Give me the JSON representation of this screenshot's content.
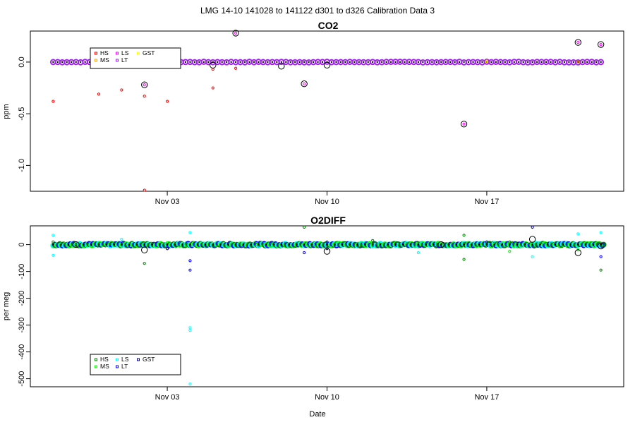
{
  "figure": {
    "title": "LMG   14-10     141028 to 141122     d301 to d326   Calibration Data 3",
    "xlabel": "Date"
  },
  "chart_data": [
    {
      "type": "scatter",
      "title": "CO2",
      "xlabel": "",
      "ylabel": "ppm",
      "xlim": [
        "2014-10-28",
        "2014-11-23"
      ],
      "ylim": [
        -1.25,
        0.3
      ],
      "x_ticks": [
        "Nov 03",
        "Nov 10",
        "Nov 17"
      ],
      "x_tick_dates": [
        "2014-11-03",
        "2014-11-10",
        "2014-11-17"
      ],
      "y_ticks": [
        0.0,
        -0.5,
        -1.0
      ],
      "y_tick_labels": [
        "0.0",
        "-0.5",
        "-1.0"
      ],
      "grid": false,
      "legend": {
        "placement": "top-left",
        "ncol": 3,
        "entries": [
          {
            "name": "HS",
            "color": "#ff0000"
          },
          {
            "name": "LS",
            "color": "#ff00ff"
          },
          {
            "name": "GST",
            "color": "#ffff00"
          },
          {
            "name": "MS",
            "color": "#ffa500"
          },
          {
            "name": "LT",
            "color": "#a020f0"
          }
        ]
      },
      "series": [
        {
          "name": "HS",
          "color": "#ff0000",
          "points": [
            [
              "2014-10-29",
              -0.38
            ],
            [
              "2014-10-31",
              -0.31
            ],
            [
              "2014-11-01",
              -0.27
            ],
            [
              "2014-11-02",
              -0.33
            ],
            [
              "2014-11-03",
              -0.38
            ],
            [
              "2014-11-05",
              -0.25
            ],
            [
              "2014-11-05",
              -0.07
            ],
            [
              "2014-11-06",
              -0.06
            ],
            [
              "2014-11-02",
              -1.24
            ]
          ]
        },
        {
          "name": "LS",
          "color": "#ff00ff",
          "points": [
            [
              "2014-11-02",
              -0.22
            ],
            [
              "2014-11-06",
              0.28
            ],
            [
              "2014-11-09",
              -0.21
            ],
            [
              "2014-11-16",
              -0.6
            ],
            [
              "2014-11-21",
              0.19
            ],
            [
              "2014-11-22",
              0.17
            ]
          ]
        },
        {
          "name": "MS",
          "color": "#ffa500",
          "points": [
            [
              "2014-11-17",
              0.01
            ],
            [
              "2014-11-21",
              0.0
            ]
          ]
        },
        {
          "name": "GST",
          "color": "#ffff00",
          "points": [
            [
              "2014-11-17",
              0.0
            ]
          ]
        },
        {
          "name": "LT",
          "color": "#a020f0",
          "dense_band": {
            "from": "2014-10-29",
            "to": "2014-11-22",
            "per_day": 5,
            "value": 0.0
          }
        }
      ],
      "outliers_circled": [
        [
          "2014-11-02",
          -0.22
        ],
        [
          "2014-11-06",
          0.28
        ],
        [
          "2014-11-09",
          -0.21
        ],
        [
          "2014-11-16",
          -0.6
        ],
        [
          "2014-11-21",
          0.19
        ],
        [
          "2014-11-22",
          0.17
        ],
        [
          "2014-11-05",
          -0.03
        ],
        [
          "2014-11-08",
          -0.04
        ],
        [
          "2014-11-10",
          -0.03
        ]
      ]
    },
    {
      "type": "scatter",
      "title": "O2DIFF",
      "xlabel": "Date",
      "ylabel": "per meg",
      "xlim": [
        "2014-10-28",
        "2014-11-23"
      ],
      "ylim": [
        -530,
        70
      ],
      "x_ticks": [
        "Nov 03",
        "Nov 10",
        "Nov 17"
      ],
      "x_tick_dates": [
        "2014-11-03",
        "2014-11-10",
        "2014-11-17"
      ],
      "y_ticks": [
        0,
        -100,
        -200,
        -300,
        -400,
        -500
      ],
      "y_tick_labels": [
        "0",
        "-100",
        "-200",
        "-300",
        "-400",
        "-500"
      ],
      "grid": false,
      "legend": {
        "placement": "bottom-left",
        "ncol": 3,
        "entries": [
          {
            "name": "HS",
            "color": "#008000"
          },
          {
            "name": "LS",
            "color": "#00ffff"
          },
          {
            "name": "GST",
            "color": "#00008b"
          },
          {
            "name": "MS",
            "color": "#00ff00"
          },
          {
            "name": "LT",
            "color": "#0000ff"
          }
        ]
      },
      "series": [
        {
          "name": "HS",
          "color": "#008000",
          "points": [
            [
              "2014-10-29",
              10
            ],
            [
              "2014-11-02",
              -70
            ],
            [
              "2014-11-09",
              65
            ],
            [
              "2014-11-16",
              35
            ],
            [
              "2014-11-16",
              -55
            ],
            [
              "2014-11-22",
              -95
            ],
            [
              "2014-11-12",
              15
            ],
            [
              "2014-11-18",
              10
            ]
          ]
        },
        {
          "name": "LS",
          "color": "#00ffff",
          "points": [
            [
              "2014-10-29",
              35
            ],
            [
              "2014-10-29",
              -40
            ],
            [
              "2014-11-04",
              45
            ],
            [
              "2014-11-04",
              -310
            ],
            [
              "2014-11-04",
              -320
            ],
            [
              "2014-11-04",
              -520
            ],
            [
              "2014-11-19",
              -45
            ],
            [
              "2014-11-21",
              40
            ],
            [
              "2014-11-22",
              45
            ],
            [
              "2014-11-14",
              -30
            ],
            [
              "2014-11-01",
              20
            ]
          ]
        },
        {
          "name": "MS",
          "color": "#00ff00",
          "points": [
            [
              "2014-10-30",
              5
            ],
            [
              "2014-11-18",
              -25
            ],
            [
              "2014-11-21",
              -20
            ]
          ]
        },
        {
          "name": "LT",
          "color": "#0000ff",
          "points": [
            [
              "2014-11-04",
              -60
            ],
            [
              "2014-11-04",
              -95
            ],
            [
              "2014-11-19",
              65
            ],
            [
              "2014-11-22",
              -45
            ],
            [
              "2014-11-09",
              -30
            ],
            [
              "2014-11-10",
              10
            ]
          ]
        },
        {
          "name": "GST",
          "color": "#00008b",
          "points": [
            [
              "2014-11-03",
              -15
            ],
            [
              "2014-11-10",
              -15
            ],
            [
              "2014-11-17",
              10
            ]
          ]
        }
      ],
      "dense_band": {
        "from": "2014-10-29",
        "to": "2014-11-22",
        "per_day": 6,
        "value": 0,
        "colors": [
          "#00ffff",
          "#00ff00",
          "#0000ff",
          "#008000"
        ]
      },
      "outliers_circled": [
        [
          "2014-10-30",
          0
        ],
        [
          "2014-11-02",
          -20
        ],
        [
          "2014-11-10",
          -25
        ],
        [
          "2014-11-19",
          20
        ],
        [
          "2014-11-21",
          -30
        ],
        [
          "2014-11-22",
          -5
        ],
        [
          "2014-11-15",
          0
        ]
      ]
    }
  ]
}
